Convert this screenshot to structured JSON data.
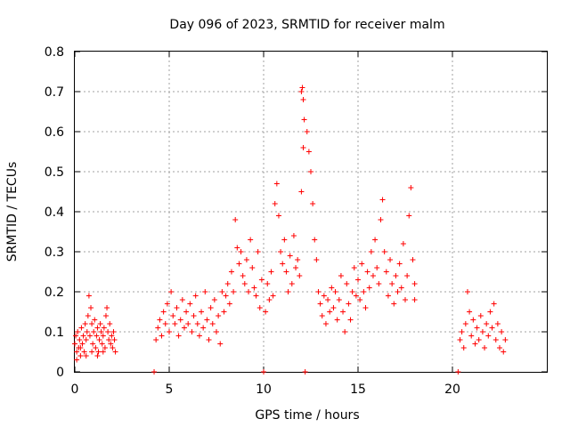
{
  "chart_data": {
    "type": "scatter",
    "title": "Day 096 of 2023, SRMTID for receiver malm",
    "xlabel": "GPS time / hours",
    "ylabel": "SRMTID / TECUs",
    "xlim": [
      0,
      25
    ],
    "ylim": [
      0,
      0.8
    ],
    "xticks": [
      0,
      5,
      10,
      15,
      20
    ],
    "xtick_labels": [
      "0",
      "5",
      "10",
      "15",
      "20"
    ],
    "yticks": [
      0,
      0.1,
      0.2,
      0.3,
      0.4,
      0.5,
      0.6,
      0.7,
      0.8
    ],
    "ytick_labels": [
      "0",
      "0.1",
      "0.2",
      "0.3",
      "0.4",
      "0.5",
      "0.6",
      "0.7",
      "0.8"
    ],
    "grid": true,
    "marker": "+",
    "color": "#ff0000",
    "series": [
      {
        "name": "SRMTID",
        "envelope_note": "dense scatter; x in hours, y in TECU",
        "points": [
          [
            0.0,
            0.07
          ],
          [
            0.05,
            0.09
          ],
          [
            0.1,
            0.05
          ],
          [
            0.15,
            0.1
          ],
          [
            0.2,
            0.06
          ],
          [
            0.25,
            0.08
          ],
          [
            0.3,
            0.04
          ],
          [
            0.35,
            0.11
          ],
          [
            0.4,
            0.07
          ],
          [
            0.45,
            0.09
          ],
          [
            0.5,
            0.05
          ],
          [
            0.55,
            0.12
          ],
          [
            0.6,
            0.08
          ],
          [
            0.65,
            0.1
          ],
          [
            0.7,
            0.14
          ],
          [
            0.75,
            0.19
          ],
          [
            0.8,
            0.09
          ],
          [
            0.85,
            0.16
          ],
          [
            0.9,
            0.12
          ],
          [
            0.95,
            0.07
          ],
          [
            1.0,
            0.1
          ],
          [
            1.05,
            0.13
          ],
          [
            1.1,
            0.06
          ],
          [
            1.15,
            0.09
          ],
          [
            1.2,
            0.11
          ],
          [
            1.25,
            0.05
          ],
          [
            1.3,
            0.08
          ],
          [
            1.35,
            0.12
          ],
          [
            1.4,
            0.1
          ],
          [
            1.45,
            0.07
          ],
          [
            1.5,
            0.09
          ],
          [
            1.55,
            0.11
          ],
          [
            1.6,
            0.06
          ],
          [
            1.65,
            0.14
          ],
          [
            1.7,
            0.16
          ],
          [
            1.75,
            0.1
          ],
          [
            1.8,
            0.08
          ],
          [
            1.85,
            0.12
          ],
          [
            1.9,
            0.07
          ],
          [
            1.95,
            0.09
          ],
          [
            2.0,
            0.06
          ],
          [
            2.05,
            0.1
          ],
          [
            2.1,
            0.08
          ],
          [
            2.15,
            0.05
          ],
          [
            0.1,
            0.03
          ],
          [
            0.3,
            0.06
          ],
          [
            0.6,
            0.04
          ],
          [
            0.9,
            0.05
          ],
          [
            1.2,
            0.04
          ],
          [
            1.5,
            0.05
          ],
          [
            4.2,
            0.0
          ],
          [
            4.3,
            0.08
          ],
          [
            4.4,
            0.11
          ],
          [
            4.5,
            0.13
          ],
          [
            4.6,
            0.09
          ],
          [
            4.7,
            0.15
          ],
          [
            4.8,
            0.12
          ],
          [
            4.9,
            0.17
          ],
          [
            5.0,
            0.1
          ],
          [
            5.1,
            0.2
          ],
          [
            5.2,
            0.14
          ],
          [
            5.3,
            0.12
          ],
          [
            5.4,
            0.16
          ],
          [
            5.5,
            0.09
          ],
          [
            5.6,
            0.13
          ],
          [
            5.7,
            0.18
          ],
          [
            5.8,
            0.11
          ],
          [
            5.9,
            0.15
          ],
          [
            6.0,
            0.12
          ],
          [
            6.1,
            0.17
          ],
          [
            6.2,
            0.1
          ],
          [
            6.3,
            0.14
          ],
          [
            6.4,
            0.19
          ],
          [
            6.5,
            0.12
          ],
          [
            6.6,
            0.09
          ],
          [
            6.7,
            0.15
          ],
          [
            6.8,
            0.11
          ],
          [
            6.9,
            0.2
          ],
          [
            7.0,
            0.13
          ],
          [
            7.1,
            0.08
          ],
          [
            7.2,
            0.16
          ],
          [
            7.3,
            0.12
          ],
          [
            7.4,
            0.18
          ],
          [
            7.5,
            0.1
          ],
          [
            7.6,
            0.14
          ],
          [
            7.7,
            0.07
          ],
          [
            7.8,
            0.2
          ],
          [
            7.9,
            0.15
          ],
          [
            8.0,
            0.19
          ],
          [
            8.1,
            0.22
          ],
          [
            8.2,
            0.17
          ],
          [
            8.3,
            0.25
          ],
          [
            8.4,
            0.2
          ],
          [
            8.5,
            0.38
          ],
          [
            8.6,
            0.31
          ],
          [
            8.7,
            0.27
          ],
          [
            8.8,
            0.3
          ],
          [
            8.9,
            0.24
          ],
          [
            9.0,
            0.22
          ],
          [
            9.1,
            0.28
          ],
          [
            9.2,
            0.2
          ],
          [
            9.3,
            0.33
          ],
          [
            9.4,
            0.26
          ],
          [
            9.5,
            0.21
          ],
          [
            9.6,
            0.19
          ],
          [
            9.7,
            0.3
          ],
          [
            9.8,
            0.16
          ],
          [
            9.9,
            0.23
          ],
          [
            10.0,
            0.0
          ],
          [
            10.1,
            0.15
          ],
          [
            10.2,
            0.22
          ],
          [
            10.3,
            0.18
          ],
          [
            10.4,
            0.25
          ],
          [
            10.5,
            0.19
          ],
          [
            10.6,
            0.42
          ],
          [
            10.7,
            0.47
          ],
          [
            10.8,
            0.39
          ],
          [
            10.9,
            0.3
          ],
          [
            11.0,
            0.27
          ],
          [
            11.1,
            0.33
          ],
          [
            11.2,
            0.25
          ],
          [
            11.3,
            0.2
          ],
          [
            11.4,
            0.29
          ],
          [
            11.5,
            0.22
          ],
          [
            11.6,
            0.34
          ],
          [
            11.7,
            0.26
          ],
          [
            11.8,
            0.28
          ],
          [
            11.9,
            0.24
          ],
          [
            12.0,
            0.45
          ],
          [
            12.1,
            0.56
          ],
          [
            12.2,
            0.0
          ],
          [
            12.3,
            0.6
          ],
          [
            12.4,
            0.55
          ],
          [
            12.5,
            0.5
          ],
          [
            12.6,
            0.42
          ],
          [
            12.7,
            0.33
          ],
          [
            12.8,
            0.28
          ],
          [
            12.9,
            0.2
          ],
          [
            13.0,
            0.17
          ],
          [
            13.1,
            0.14
          ],
          [
            13.2,
            0.19
          ],
          [
            13.3,
            0.12
          ],
          [
            13.4,
            0.18
          ],
          [
            13.5,
            0.15
          ],
          [
            13.6,
            0.21
          ],
          [
            13.7,
            0.16
          ],
          [
            13.8,
            0.2
          ],
          [
            13.9,
            0.13
          ],
          [
            14.0,
            0.18
          ],
          [
            14.1,
            0.24
          ],
          [
            14.2,
            0.15
          ],
          [
            14.3,
            0.1
          ],
          [
            14.4,
            0.22
          ],
          [
            14.5,
            0.17
          ],
          [
            14.6,
            0.13
          ],
          [
            14.7,
            0.2
          ],
          [
            14.8,
            0.26
          ],
          [
            14.9,
            0.19
          ],
          [
            15.0,
            0.23
          ],
          [
            15.1,
            0.18
          ],
          [
            15.2,
            0.27
          ],
          [
            15.3,
            0.2
          ],
          [
            15.4,
            0.16
          ],
          [
            15.5,
            0.25
          ],
          [
            15.6,
            0.21
          ],
          [
            15.7,
            0.3
          ],
          [
            15.8,
            0.24
          ],
          [
            15.9,
            0.33
          ],
          [
            16.0,
            0.26
          ],
          [
            16.1,
            0.22
          ],
          [
            16.2,
            0.38
          ],
          [
            16.3,
            0.43
          ],
          [
            16.4,
            0.3
          ],
          [
            16.5,
            0.25
          ],
          [
            16.6,
            0.19
          ],
          [
            16.7,
            0.28
          ],
          [
            16.8,
            0.22
          ],
          [
            16.9,
            0.17
          ],
          [
            17.0,
            0.24
          ],
          [
            17.1,
            0.2
          ],
          [
            17.2,
            0.27
          ],
          [
            17.3,
            0.21
          ],
          [
            17.4,
            0.32
          ],
          [
            17.5,
            0.18
          ],
          [
            17.6,
            0.24
          ],
          [
            17.7,
            0.39
          ],
          [
            17.8,
            0.46
          ],
          [
            17.9,
            0.28
          ],
          [
            18.0,
            0.22
          ],
          [
            18.0,
            0.18
          ],
          [
            20.3,
            0.0
          ],
          [
            20.4,
            0.08
          ],
          [
            20.5,
            0.1
          ],
          [
            20.6,
            0.06
          ],
          [
            20.7,
            0.12
          ],
          [
            20.8,
            0.2
          ],
          [
            20.9,
            0.15
          ],
          [
            21.0,
            0.09
          ],
          [
            21.1,
            0.13
          ],
          [
            21.2,
            0.07
          ],
          [
            21.3,
            0.11
          ],
          [
            21.4,
            0.08
          ],
          [
            21.5,
            0.14
          ],
          [
            21.6,
            0.1
          ],
          [
            21.7,
            0.06
          ],
          [
            21.8,
            0.12
          ],
          [
            21.9,
            0.09
          ],
          [
            22.0,
            0.15
          ],
          [
            22.1,
            0.11
          ],
          [
            22.2,
            0.17
          ],
          [
            22.3,
            0.08
          ],
          [
            22.4,
            0.12
          ],
          [
            22.5,
            0.06
          ],
          [
            22.6,
            0.1
          ],
          [
            22.7,
            0.05
          ],
          [
            22.8,
            0.08
          ],
          [
            12.0,
            0.7
          ],
          [
            12.05,
            0.71
          ],
          [
            12.1,
            0.68
          ],
          [
            12.15,
            0.63
          ]
        ]
      }
    ]
  }
}
